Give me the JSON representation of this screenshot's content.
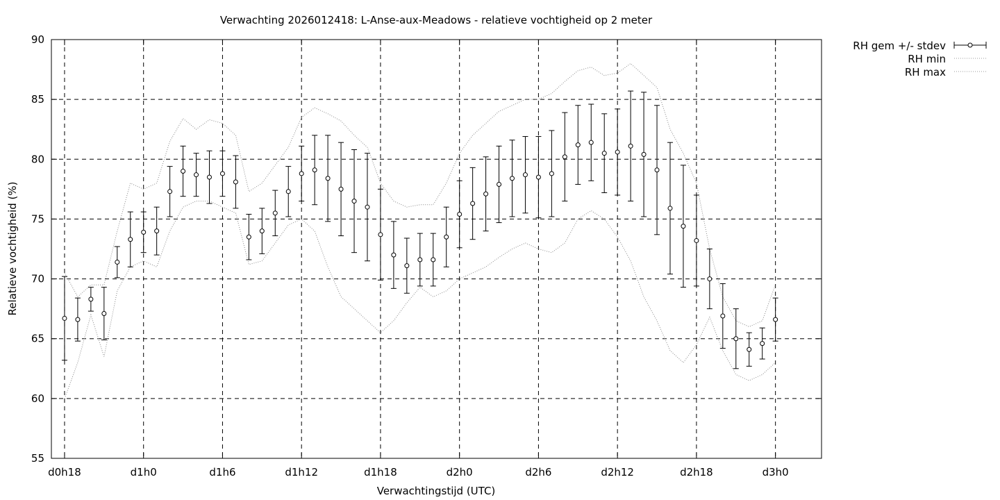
{
  "chart_data": {
    "type": "line",
    "title": "Verwachting 2026012418: L-Anse-aux-Meadows - relatieve vochtigheid op 2 meter",
    "xlabel": "Verwachtingstijd (UTC)",
    "ylabel": "Relatieve vochtigheid (%)",
    "xlim": [
      -1,
      57.5
    ],
    "ylim": [
      55,
      90
    ],
    "y_ticks": [
      55,
      60,
      65,
      70,
      75,
      80,
      85,
      90
    ],
    "x_ticks": [
      {
        "x": 0,
        "label": "d0h18"
      },
      {
        "x": 6,
        "label": "d1h0"
      },
      {
        "x": 12,
        "label": "d1h6"
      },
      {
        "x": 18,
        "label": "d1h12"
      },
      {
        "x": 24,
        "label": "d1h18"
      },
      {
        "x": 30,
        "label": "d2h0"
      },
      {
        "x": 36,
        "label": "d2h6"
      },
      {
        "x": 42,
        "label": "d2h12"
      },
      {
        "x": 48,
        "label": "d2h18"
      },
      {
        "x": 54,
        "label": "d3h0"
      }
    ],
    "grid": true,
    "legend_position": "top-right, outside plot",
    "legend": [
      "RH gem +/- stdev",
      "RH min",
      "RH max"
    ],
    "series": [
      {
        "name": "RH gem +/- stdev",
        "x": [
          0,
          1,
          2,
          3,
          4,
          5,
          6,
          7,
          8,
          9,
          10,
          11,
          12,
          13,
          14,
          15,
          16,
          17,
          18,
          19,
          20,
          21,
          22,
          23,
          24,
          25,
          26,
          27,
          28,
          29,
          30,
          31,
          32,
          33,
          34,
          35,
          36,
          37,
          38,
          39,
          40,
          41,
          42,
          43,
          44,
          45,
          46,
          47,
          48,
          49,
          50,
          51,
          52,
          53,
          54
        ],
        "mean": [
          66.7,
          66.6,
          68.3,
          67.1,
          71.4,
          73.3,
          73.9,
          74.0,
          77.3,
          79.0,
          78.7,
          78.5,
          78.8,
          78.1,
          73.5,
          74.0,
          75.5,
          77.3,
          78.8,
          79.1,
          78.4,
          77.5,
          76.5,
          76.0,
          73.7,
          72.0,
          71.1,
          71.6,
          71.6,
          73.5,
          75.4,
          76.3,
          77.1,
          77.9,
          78.4,
          78.7,
          78.5,
          78.8,
          80.2,
          81.2,
          81.4,
          80.5,
          80.6,
          81.1,
          80.4,
          79.1,
          75.9,
          74.4,
          73.2,
          70.0,
          66.9,
          65.0,
          64.1,
          64.6,
          66.6
        ],
        "stdev": [
          3.5,
          1.8,
          1.0,
          2.2,
          1.3,
          2.3,
          1.7,
          2.0,
          2.1,
          2.1,
          1.8,
          2.2,
          1.9,
          2.2,
          1.9,
          1.9,
          1.9,
          2.1,
          2.3,
          2.9,
          3.6,
          3.9,
          4.3,
          4.5,
          3.8,
          2.8,
          2.3,
          2.2,
          2.2,
          2.5,
          2.8,
          3.0,
          3.1,
          3.2,
          3.2,
          3.2,
          3.4,
          3.6,
          3.7,
          3.3,
          3.2,
          3.3,
          3.6,
          4.6,
          5.2,
          5.4,
          5.5,
          5.1,
          3.8,
          2.5,
          2.7,
          2.5,
          1.4,
          1.3,
          1.8
        ]
      },
      {
        "name": "RH min",
        "x": [
          0,
          1,
          2,
          3,
          4,
          5,
          6,
          7,
          8,
          9,
          10,
          11,
          12,
          13,
          14,
          15,
          16,
          17,
          18,
          19,
          20,
          21,
          22,
          23,
          24,
          25,
          26,
          27,
          28,
          29,
          30,
          31,
          32,
          33,
          34,
          35,
          36,
          37,
          38,
          39,
          40,
          41,
          42,
          43,
          44,
          45,
          46,
          47,
          48,
          49,
          50,
          51,
          52,
          53,
          54
        ],
        "values": [
          60.0,
          63.0,
          67.0,
          63.5,
          69.0,
          71.0,
          71.5,
          71.0,
          74.0,
          76.0,
          76.5,
          76.5,
          76.0,
          75.5,
          71.2,
          71.5,
          73.0,
          74.5,
          75.0,
          74.0,
          71.0,
          68.5,
          67.5,
          66.5,
          65.5,
          66.5,
          68.0,
          69.3,
          68.5,
          69.0,
          70.0,
          70.5,
          71.0,
          71.8,
          72.5,
          73.0,
          72.5,
          72.2,
          73.0,
          75.0,
          75.7,
          75.0,
          73.5,
          71.5,
          68.5,
          66.5,
          64.0,
          63.0,
          64.5,
          66.8,
          64.0,
          62.0,
          61.5,
          62.0,
          63.0
        ]
      },
      {
        "name": "RH max",
        "x": [
          0,
          1,
          2,
          3,
          4,
          5,
          6,
          7,
          8,
          9,
          10,
          11,
          12,
          13,
          14,
          15,
          16,
          17,
          18,
          19,
          20,
          21,
          22,
          23,
          24,
          25,
          26,
          27,
          28,
          29,
          30,
          31,
          32,
          33,
          34,
          35,
          36,
          37,
          38,
          39,
          40,
          41,
          42,
          43,
          44,
          45,
          46,
          47,
          48,
          49,
          50,
          51,
          52,
          53,
          54
        ],
        "values": [
          70.5,
          68.5,
          69.5,
          69.5,
          74.0,
          78.0,
          77.5,
          78.0,
          81.5,
          83.4,
          82.5,
          83.3,
          83.0,
          82.0,
          77.3,
          78.0,
          79.5,
          81.0,
          83.5,
          84.3,
          83.8,
          83.2,
          82.0,
          81.0,
          78.0,
          76.5,
          76.0,
          76.2,
          76.2,
          78.0,
          80.5,
          82.0,
          83.0,
          84.0,
          84.5,
          85.0,
          85.0,
          85.5,
          86.5,
          87.4,
          87.7,
          87.0,
          87.2,
          88.0,
          87.0,
          86.0,
          82.5,
          80.5,
          78.0,
          72.5,
          68.5,
          66.5,
          66.0,
          66.5,
          69.5
        ]
      }
    ]
  }
}
